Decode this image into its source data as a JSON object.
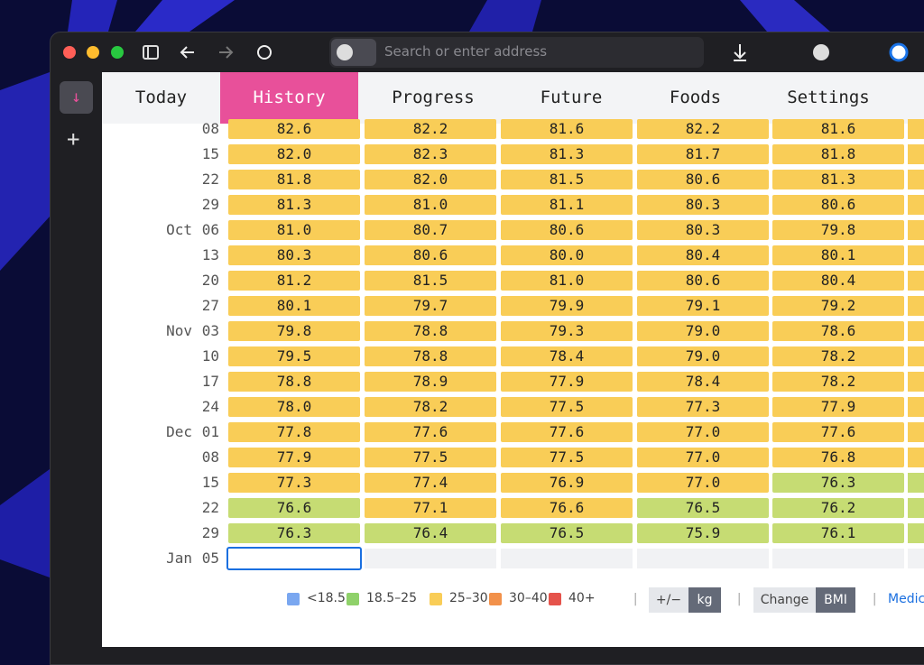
{
  "browser": {
    "address_placeholder": "Search or enter address"
  },
  "tabs": [
    "Today",
    "History",
    "Progress",
    "Future",
    "Foods",
    "Settings"
  ],
  "active_tab": 1,
  "table": {
    "rows": [
      {
        "month": null,
        "day": "08",
        "cells": [
          "82.6",
          "82.2",
          "81.6",
          "82.2",
          "81.6"
        ],
        "colors": [
          "#f9cd57",
          "#f9cd57",
          "#f9cd57",
          "#f9cd57",
          "#f9cd57"
        ]
      },
      {
        "month": null,
        "day": "15",
        "cells": [
          "82.0",
          "82.3",
          "81.3",
          "81.7",
          "81.8"
        ],
        "colors": [
          "#f9cd57",
          "#f9cd57",
          "#f9cd57",
          "#f9cd57",
          "#f9cd57"
        ]
      },
      {
        "month": null,
        "day": "22",
        "cells": [
          "81.8",
          "82.0",
          "81.5",
          "80.6",
          "81.3"
        ],
        "colors": [
          "#f9cd57",
          "#f9cd57",
          "#f9cd57",
          "#f9cd57",
          "#f9cd57"
        ]
      },
      {
        "month": null,
        "day": "29",
        "cells": [
          "81.3",
          "81.0",
          "81.1",
          "80.3",
          "80.6"
        ],
        "colors": [
          "#f9cd57",
          "#f9cd57",
          "#f9cd57",
          "#f9cd57",
          "#f9cd57"
        ]
      },
      {
        "month": "Oct",
        "day": "06",
        "cells": [
          "81.0",
          "80.7",
          "80.6",
          "80.3",
          "79.8"
        ],
        "colors": [
          "#f9cd57",
          "#f9cd57",
          "#f9cd57",
          "#f9cd57",
          "#f9cd57"
        ]
      },
      {
        "month": null,
        "day": "13",
        "cells": [
          "80.3",
          "80.6",
          "80.0",
          "80.4",
          "80.1"
        ],
        "colors": [
          "#f9cd57",
          "#f9cd57",
          "#f9cd57",
          "#f9cd57",
          "#f9cd57"
        ]
      },
      {
        "month": null,
        "day": "20",
        "cells": [
          "81.2",
          "81.5",
          "81.0",
          "80.6",
          "80.4"
        ],
        "colors": [
          "#f9cd57",
          "#f9cd57",
          "#f9cd57",
          "#f9cd57",
          "#f9cd57"
        ]
      },
      {
        "month": null,
        "day": "27",
        "cells": [
          "80.1",
          "79.7",
          "79.9",
          "79.1",
          "79.2"
        ],
        "colors": [
          "#f9cd57",
          "#f9cd57",
          "#f9cd57",
          "#f9cd57",
          "#f9cd57"
        ]
      },
      {
        "month": "Nov",
        "day": "03",
        "cells": [
          "79.8",
          "78.8",
          "79.3",
          "79.0",
          "78.6"
        ],
        "colors": [
          "#f9cd57",
          "#f9cd57",
          "#f9cd57",
          "#f9cd57",
          "#f9cd57"
        ]
      },
      {
        "month": null,
        "day": "10",
        "cells": [
          "79.5",
          "78.8",
          "78.4",
          "79.0",
          "78.2"
        ],
        "colors": [
          "#f9cd57",
          "#f9cd57",
          "#f9cd57",
          "#f9cd57",
          "#f9cd57"
        ]
      },
      {
        "month": null,
        "day": "17",
        "cells": [
          "78.8",
          "78.9",
          "77.9",
          "78.4",
          "78.2"
        ],
        "colors": [
          "#f9cd57",
          "#f9cd57",
          "#f9cd57",
          "#f9cd57",
          "#f9cd57"
        ]
      },
      {
        "month": null,
        "day": "24",
        "cells": [
          "78.0",
          "78.2",
          "77.5",
          "77.3",
          "77.9"
        ],
        "colors": [
          "#f9cd57",
          "#f9cd57",
          "#f9cd57",
          "#f9cd57",
          "#f9cd57"
        ]
      },
      {
        "month": "Dec",
        "day": "01",
        "cells": [
          "77.8",
          "77.6",
          "77.6",
          "77.0",
          "77.6"
        ],
        "colors": [
          "#f9cd57",
          "#f9cd57",
          "#f9cd57",
          "#f9cd57",
          "#f9cd57"
        ]
      },
      {
        "month": null,
        "day": "08",
        "cells": [
          "77.9",
          "77.5",
          "77.5",
          "77.0",
          "76.8"
        ],
        "colors": [
          "#f9cd57",
          "#f9cd57",
          "#f9cd57",
          "#f9cd57",
          "#f9cd57"
        ]
      },
      {
        "month": null,
        "day": "15",
        "cells": [
          "77.3",
          "77.4",
          "76.9",
          "77.0",
          "76.3"
        ],
        "colors": [
          "#f9cd57",
          "#f9cd57",
          "#f9cd57",
          "#f9cd57",
          "#c6dc73"
        ]
      },
      {
        "month": null,
        "day": "22",
        "cells": [
          "76.6",
          "77.1",
          "76.6",
          "76.5",
          "76.2"
        ],
        "colors": [
          "#c6dc73",
          "#f9cd57",
          "#f9cd57",
          "#c6dc73",
          "#c6dc73"
        ]
      },
      {
        "month": null,
        "day": "29",
        "cells": [
          "76.3",
          "76.4",
          "76.5",
          "75.9",
          "76.1"
        ],
        "colors": [
          "#c6dc73",
          "#c6dc73",
          "#c6dc73",
          "#c6dc73",
          "#c6dc73"
        ]
      },
      {
        "month": "Jan",
        "day": "05",
        "cells": [],
        "colors": []
      }
    ]
  },
  "legend": [
    {
      "label": "<18.5",
      "color": "#7aa7f0"
    },
    {
      "label": "18.5–25",
      "color": "#8fd16a"
    },
    {
      "label": "25–30",
      "color": "#f9cd57"
    },
    {
      "label": "30–40",
      "color": "#f2914a"
    },
    {
      "label": "40+",
      "color": "#e5534b"
    }
  ],
  "controls": {
    "unit_toggle": [
      "+/−",
      "kg"
    ],
    "mode_toggle": [
      "Change",
      "BMI"
    ],
    "link": "Medic"
  }
}
